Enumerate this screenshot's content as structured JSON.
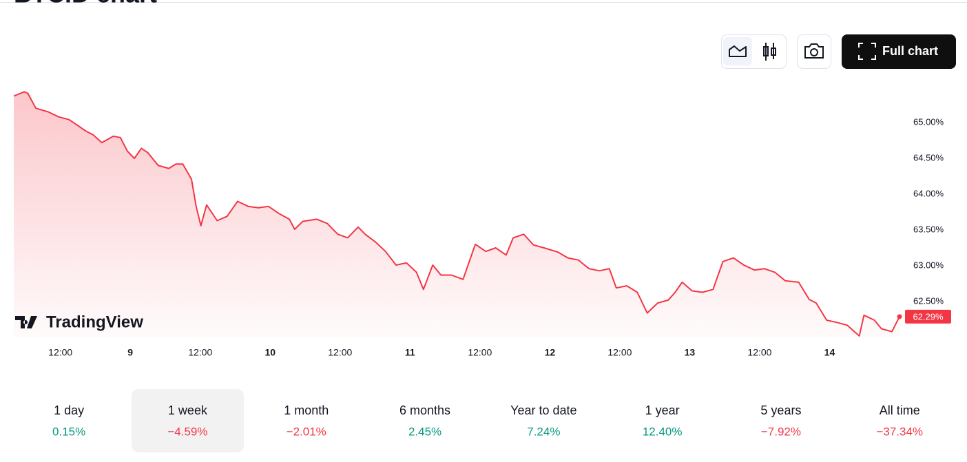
{
  "chart_data": {
    "type": "line",
    "title": "BTC.D chart",
    "watermark": "TradingView",
    "button": "Full chart",
    "x": [
      4.0,
      5.8,
      6.4,
      7.8,
      9.9,
      11.7,
      13.5,
      14.6,
      16.4,
      17.6,
      19.1,
      21.1,
      22.3,
      23.5,
      24.7,
      25.9,
      27.0,
      28.8,
      30.6,
      31.8,
      33.0,
      34.5,
      35.3,
      36.1,
      37.1,
      38.9,
      40.6,
      42.4,
      44.2,
      46.0,
      47.7,
      49.5,
      51.3,
      52.2,
      53.6,
      56.0,
      57.8,
      59.6,
      61.3,
      63.1,
      64.3,
      66.1,
      67.8,
      69.6,
      71.4,
      73.1,
      74.3,
      75.9,
      77.3,
      79.1,
      81.1,
      83.2,
      85.0,
      86.7,
      88.5,
      89.7,
      91.5,
      93.2,
      95.0,
      97.4,
      99.1,
      100.9,
      102.7,
      104.5,
      106.2,
      107.4,
      109.2,
      111.0,
      112.7,
      114.5,
      116.3,
      117.5,
      118.7,
      120.4,
      122.2,
      124.0,
      125.7,
      127.5,
      129.3,
      131.1,
      132.8,
      134.6,
      136.4,
      138.7,
      140.5,
      141.7,
      143.5,
      145.2,
      147.0,
      149.1,
      149.9,
      151.7,
      152.9,
      154.7,
      156.0
    ],
    "series": [
      {
        "name": "BTC.D",
        "color": "#f23645",
        "values": [
          65.37,
          65.43,
          65.41,
          65.2,
          65.15,
          65.08,
          65.04,
          64.98,
          64.88,
          64.83,
          64.72,
          64.81,
          64.79,
          64.6,
          64.5,
          64.64,
          64.58,
          64.4,
          64.36,
          64.42,
          64.42,
          64.21,
          63.83,
          63.56,
          63.85,
          63.63,
          63.69,
          63.9,
          63.83,
          63.81,
          63.83,
          63.73,
          63.65,
          63.51,
          63.62,
          63.65,
          63.59,
          63.44,
          63.39,
          63.54,
          63.44,
          63.33,
          63.2,
          63.01,
          63.04,
          62.91,
          62.67,
          63.01,
          62.87,
          62.87,
          62.81,
          63.3,
          63.2,
          63.25,
          63.15,
          63.39,
          63.44,
          63.29,
          63.25,
          63.19,
          63.11,
          63.08,
          62.96,
          62.93,
          62.96,
          62.69,
          62.72,
          62.63,
          62.34,
          62.48,
          62.52,
          62.63,
          62.77,
          62.65,
          62.63,
          62.67,
          63.06,
          63.11,
          63.01,
          62.94,
          62.96,
          62.91,
          62.79,
          62.77,
          62.53,
          62.48,
          62.24,
          62.21,
          62.17,
          62.02,
          62.31,
          62.24,
          62.12,
          62.08,
          62.29
        ],
        "last_value_label": "62.29%"
      }
    ],
    "xlim": [
      4,
      156
    ],
    "ylim": [
      62.0,
      65.5
    ],
    "xticks": [
      {
        "value": 12,
        "label": "12:00"
      },
      {
        "value": 24,
        "label": "9"
      },
      {
        "value": 36,
        "label": "12:00"
      },
      {
        "value": 48,
        "label": "10"
      },
      {
        "value": 60,
        "label": "12:00"
      },
      {
        "value": 72,
        "label": "11"
      },
      {
        "value": 84,
        "label": "12:00"
      },
      {
        "value": 96,
        "label": "12"
      },
      {
        "value": 108,
        "label": "12:00"
      },
      {
        "value": 120,
        "label": "13"
      },
      {
        "value": 132,
        "label": "12:00"
      },
      {
        "value": 144,
        "label": "14"
      }
    ],
    "yticks": [
      {
        "value": 62.5,
        "label": "62.50%"
      },
      {
        "value": 63.0,
        "label": "63.00%"
      },
      {
        "value": 63.5,
        "label": "63.50%"
      },
      {
        "value": 64.0,
        "label": "64.00%"
      },
      {
        "value": 64.5,
        "label": "64.50%"
      },
      {
        "value": 65.0,
        "label": "65.00%"
      }
    ],
    "grid": false
  },
  "periods": {
    "selected_index": 1,
    "items": [
      {
        "label": "1 day",
        "change": "0.15%",
        "color": "#089981"
      },
      {
        "label": "1 week",
        "change": "−4.59%",
        "color": "#f23645"
      },
      {
        "label": "1 month",
        "change": "−2.01%",
        "color": "#f23645"
      },
      {
        "label": "6 months",
        "change": "2.45%",
        "color": "#089981"
      },
      {
        "label": "Year to date",
        "change": "7.24%",
        "color": "#089981"
      },
      {
        "label": "1 year",
        "change": "12.40%",
        "color": "#089981"
      },
      {
        "label": "5 years",
        "change": "−7.92%",
        "color": "#f23645"
      },
      {
        "label": "All time",
        "change": "−37.34%",
        "color": "#f23645"
      }
    ]
  }
}
